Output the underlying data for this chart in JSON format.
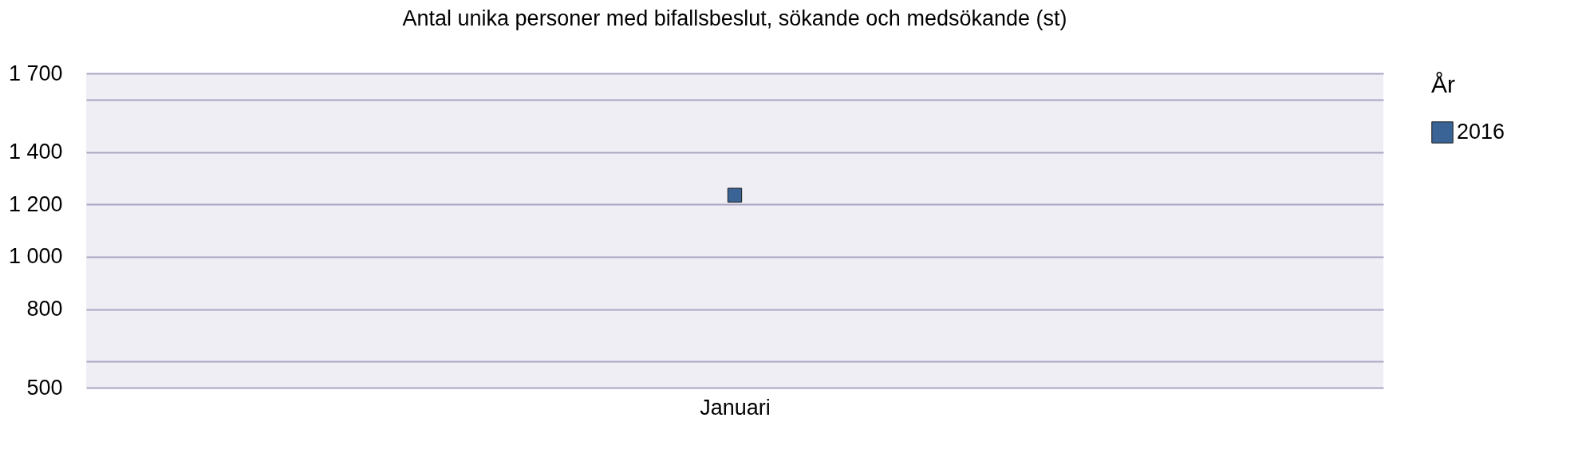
{
  "chart_data": {
    "type": "scatter",
    "title": "Antal unika personer med bifallsbeslut, sökande och medsökande (st)",
    "categories": [
      "Januari"
    ],
    "series": [
      {
        "name": "2016",
        "color": "#3a6496",
        "values": [
          1235
        ]
      }
    ],
    "legend_title": "År",
    "legend": "right",
    "marker": "square",
    "grid": "y",
    "ylim": [
      500,
      1700
    ],
    "yticks": [
      500,
      {
        "value": 600,
        "label": null
      },
      800,
      {
        "value": 1000,
        "label": "1 000"
      },
      {
        "value": 1200,
        "label": "1 200"
      },
      {
        "value": 1400,
        "label": "1 400"
      },
      {
        "value": 1600,
        "label": null
      },
      {
        "value": 1700,
        "label": "1 700"
      }
    ]
  }
}
